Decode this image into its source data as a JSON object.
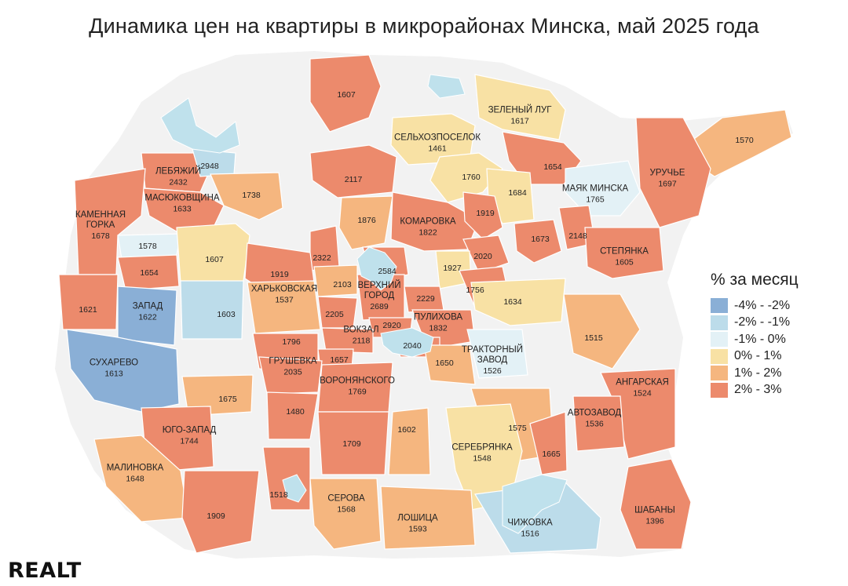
{
  "title": "Динамика цен на квартиры в микрорайонах Минска, май 2025 года",
  "logo": "REALT",
  "colors": {
    "neg4_2": "#8aafd6",
    "neg2_1": "#bcdcea",
    "neg1_0": "#e3f1f6",
    "pos0_1": "#f8e1a4",
    "pos1_2": "#f5b67f",
    "pos2_3": "#ec8a6c",
    "background": "#f2f2f2",
    "water": "#bfe1ec"
  },
  "legend": {
    "title": "% за месяц",
    "items": [
      {
        "label": "-4% - -2%",
        "color": "#8aafd6"
      },
      {
        "label": "-2% - -1%",
        "color": "#bcdcea"
      },
      {
        "label": "-1% - 0%",
        "color": "#e3f1f6"
      },
      {
        "label": "0% - 1%",
        "color": "#f8e1a4"
      },
      {
        "label": "1% - 2%",
        "color": "#f5b67f"
      },
      {
        "label": "2% - 3%",
        "color": "#ec8a6c"
      }
    ]
  },
  "districts": [
    {
      "name": "",
      "value": "1607",
      "cat": "pos2_3"
    },
    {
      "name": "ЗЕЛЕНЫЙ ЛУГ",
      "value": "1617",
      "cat": "pos0_1"
    },
    {
      "name": "СЕЛЬХОЗПОСЕЛОК",
      "value": "1461",
      "cat": "pos0_1"
    },
    {
      "name": "",
      "value": "1570",
      "cat": "pos1_2"
    },
    {
      "name": "ЛЕБЯЖИЙ",
      "value": "2432",
      "cat": "pos2_3"
    },
    {
      "name": "",
      "value": "2948",
      "cat": "neg2_1"
    },
    {
      "name": "",
      "value": "2117",
      "cat": "pos2_3"
    },
    {
      "name": "",
      "value": "1760",
      "cat": "pos0_1"
    },
    {
      "name": "",
      "value": "1654",
      "cat": "pos2_3"
    },
    {
      "name": "УРУЧЬЕ",
      "value": "1697",
      "cat": "pos2_3"
    },
    {
      "name": "МАСЮКОВЩИНА",
      "value": "1633",
      "cat": "pos2_3"
    },
    {
      "name": "",
      "value": "1738",
      "cat": "pos1_2"
    },
    {
      "name": "",
      "value": "1684",
      "cat": "pos0_1"
    },
    {
      "name": "МАЯК МИНСКА",
      "value": "1765",
      "cat": "neg1_0"
    },
    {
      "name": "КАМЕННАЯ ГОРКА",
      "value": "1678",
      "cat": "pos2_3"
    },
    {
      "name": "",
      "value": "1876",
      "cat": "pos1_2"
    },
    {
      "name": "КОМАРОВКА",
      "value": "1822",
      "cat": "pos2_3"
    },
    {
      "name": "",
      "value": "1919",
      "cat": "pos2_3"
    },
    {
      "name": "",
      "value": "1578",
      "cat": "neg1_0"
    },
    {
      "name": "",
      "value": "1607",
      "cat": "pos0_1"
    },
    {
      "name": "",
      "value": "2322",
      "cat": "pos2_3"
    },
    {
      "name": "",
      "value": "1673",
      "cat": "pos2_3"
    },
    {
      "name": "",
      "value": "2148",
      "cat": "pos2_3"
    },
    {
      "name": "СТЕПЯНКА",
      "value": "1605",
      "cat": "pos2_3"
    },
    {
      "name": "",
      "value": "2020",
      "cat": "pos2_3"
    },
    {
      "name": "",
      "value": "1654",
      "cat": "pos2_3"
    },
    {
      "name": "",
      "value": "1919",
      "cat": "pos2_3"
    },
    {
      "name": "",
      "value": "2584",
      "cat": "pos2_3"
    },
    {
      "name": "",
      "value": "1927",
      "cat": "pos0_1"
    },
    {
      "name": "",
      "value": "2103",
      "cat": "pos1_2"
    },
    {
      "name": "ВЕРХНИЙ ГОРОД",
      "value": "2689",
      "cat": "pos2_3"
    },
    {
      "name": "",
      "value": "1756",
      "cat": "pos2_3"
    },
    {
      "name": "ХАРЬКОВСКАЯ",
      "value": "1537",
      "cat": "pos1_2"
    },
    {
      "name": "",
      "value": "2229",
      "cat": "pos2_3"
    },
    {
      "name": "",
      "value": "1634",
      "cat": "pos0_1"
    },
    {
      "name": "",
      "value": "1621",
      "cat": "pos2_3"
    },
    {
      "name": "ЗАПАД",
      "value": "1622",
      "cat": "neg4_2"
    },
    {
      "name": "",
      "value": "1603",
      "cat": "neg2_1"
    },
    {
      "name": "",
      "value": "2205",
      "cat": "pos2_3"
    },
    {
      "name": "ПУЛИХОВА",
      "value": "1832",
      "cat": "pos2_3"
    },
    {
      "name": "",
      "value": "2920",
      "cat": "pos2_3"
    },
    {
      "name": "",
      "value": "1515",
      "cat": "pos1_2"
    },
    {
      "name": "ВОКЗАЛ",
      "value": "2118",
      "cat": "pos2_3"
    },
    {
      "name": "",
      "value": "1796",
      "cat": "pos2_3"
    },
    {
      "name": "",
      "value": "2040",
      "cat": "pos2_3"
    },
    {
      "name": "ТРАКТОРНЫЙ ЗАВОД",
      "value": "1526",
      "cat": "neg1_0"
    },
    {
      "name": "",
      "value": "1657",
      "cat": "pos2_3"
    },
    {
      "name": "",
      "value": "1650",
      "cat": "pos1_2"
    },
    {
      "name": "СУХАРЕВО",
      "value": "1613",
      "cat": "neg4_2"
    },
    {
      "name": "ГРУШЕВКА",
      "value": "2035",
      "cat": "pos2_3"
    },
    {
      "name": "ВОРОНЯНСКОГО",
      "value": "1769",
      "cat": "pos2_3"
    },
    {
      "name": "АНГАРСКАЯ",
      "value": "1524",
      "cat": "pos2_3"
    },
    {
      "name": "",
      "value": "1675",
      "cat": "pos1_2"
    },
    {
      "name": "",
      "value": "1480",
      "cat": "pos2_3"
    },
    {
      "name": "АВТОЗАВОД",
      "value": "1536",
      "cat": "pos2_3"
    },
    {
      "name": "ЮГО-ЗАПАД",
      "value": "1744",
      "cat": "pos2_3"
    },
    {
      "name": "",
      "value": "1602",
      "cat": "pos1_2"
    },
    {
      "name": "",
      "value": "1575",
      "cat": "pos1_2"
    },
    {
      "name": "",
      "value": "1709",
      "cat": "pos2_3"
    },
    {
      "name": "СЕРЕБРЯНКА",
      "value": "1548",
      "cat": "pos0_1"
    },
    {
      "name": "",
      "value": "1665",
      "cat": "pos2_3"
    },
    {
      "name": "МАЛИНОВКА",
      "value": "1648",
      "cat": "pos1_2"
    },
    {
      "name": "",
      "value": "1518",
      "cat": "pos2_3"
    },
    {
      "name": "СЕРОВА",
      "value": "1568",
      "cat": "pos1_2"
    },
    {
      "name": "ШАБАНЫ",
      "value": "1396",
      "cat": "pos2_3"
    },
    {
      "name": "",
      "value": "1909",
      "cat": "pos2_3"
    },
    {
      "name": "ЛОШИЦА",
      "value": "1593",
      "cat": "pos1_2"
    },
    {
      "name": "ЧИЖОВКА",
      "value": "1516",
      "cat": "neg2_1"
    }
  ]
}
